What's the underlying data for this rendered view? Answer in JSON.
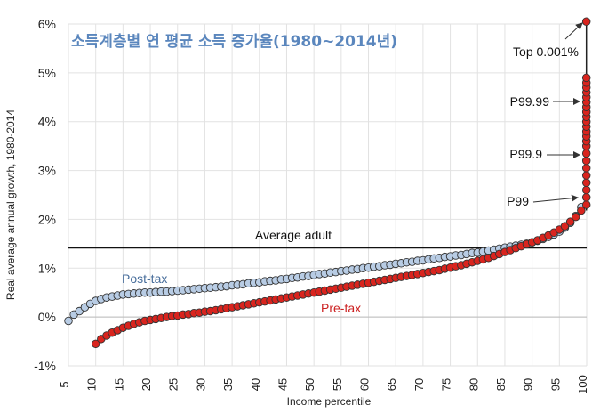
{
  "chart_data": {
    "type": "scatter",
    "title": "소득계층별 연 평균 소득 증가율(1980~2014년)",
    "xlabel": "Income percentile",
    "ylabel": "Real average annual growth, 1980-2014",
    "xlim": [
      5,
      100
    ],
    "ylim": [
      -1,
      6
    ],
    "x_ticks": [
      5,
      10,
      15,
      20,
      25,
      30,
      35,
      40,
      45,
      50,
      55,
      60,
      65,
      70,
      75,
      80,
      85,
      90,
      95,
      100
    ],
    "y_ticks": [
      -1,
      0,
      1,
      2,
      3,
      4,
      5,
      6
    ],
    "y_tick_labels": [
      "-1%",
      "0%",
      "1%",
      "2%",
      "3%",
      "4%",
      "5%",
      "6%"
    ],
    "grid": true,
    "reference_line": {
      "label": "Average adult",
      "y": 1.42
    },
    "series": [
      {
        "name": "Post-tax",
        "color": "#b8cce4",
        "points": [
          [
            5,
            -0.08
          ],
          [
            6,
            0.05
          ],
          [
            7,
            0.12
          ],
          [
            8,
            0.2
          ],
          [
            9,
            0.27
          ],
          [
            10,
            0.33
          ],
          [
            11,
            0.37
          ],
          [
            12,
            0.4
          ],
          [
            13,
            0.42
          ],
          [
            14,
            0.44
          ],
          [
            15,
            0.46
          ],
          [
            16,
            0.47
          ],
          [
            17,
            0.48
          ],
          [
            18,
            0.49
          ],
          [
            19,
            0.5
          ],
          [
            20,
            0.5
          ],
          [
            21,
            0.51
          ],
          [
            22,
            0.52
          ],
          [
            23,
            0.52
          ],
          [
            24,
            0.53
          ],
          [
            25,
            0.54
          ],
          [
            26,
            0.55
          ],
          [
            27,
            0.56
          ],
          [
            28,
            0.57
          ],
          [
            29,
            0.58
          ],
          [
            30,
            0.59
          ],
          [
            31,
            0.6
          ],
          [
            32,
            0.61
          ],
          [
            33,
            0.62
          ],
          [
            34,
            0.63
          ],
          [
            35,
            0.65
          ],
          [
            36,
            0.66
          ],
          [
            37,
            0.67
          ],
          [
            38,
            0.69
          ],
          [
            39,
            0.7
          ],
          [
            40,
            0.71
          ],
          [
            41,
            0.73
          ],
          [
            42,
            0.74
          ],
          [
            43,
            0.75
          ],
          [
            44,
            0.77
          ],
          [
            45,
            0.78
          ],
          [
            46,
            0.8
          ],
          [
            47,
            0.81
          ],
          [
            48,
            0.83
          ],
          [
            49,
            0.84
          ],
          [
            50,
            0.86
          ],
          [
            51,
            0.88
          ],
          [
            52,
            0.89
          ],
          [
            53,
            0.91
          ],
          [
            54,
            0.92
          ],
          [
            55,
            0.94
          ],
          [
            56,
            0.95
          ],
          [
            57,
            0.97
          ],
          [
            58,
            0.98
          ],
          [
            59,
            1.0
          ],
          [
            60,
            1.01
          ],
          [
            61,
            1.03
          ],
          [
            62,
            1.04
          ],
          [
            63,
            1.06
          ],
          [
            64,
            1.07
          ],
          [
            65,
            1.09
          ],
          [
            66,
            1.1
          ],
          [
            67,
            1.12
          ],
          [
            68,
            1.13
          ],
          [
            69,
            1.15
          ],
          [
            70,
            1.16
          ],
          [
            71,
            1.18
          ],
          [
            72,
            1.2
          ],
          [
            73,
            1.21
          ],
          [
            74,
            1.23
          ],
          [
            75,
            1.24
          ],
          [
            76,
            1.26
          ],
          [
            77,
            1.27
          ],
          [
            78,
            1.29
          ],
          [
            79,
            1.31
          ],
          [
            80,
            1.32
          ],
          [
            81,
            1.34
          ],
          [
            82,
            1.36
          ],
          [
            83,
            1.38
          ],
          [
            84,
            1.4
          ],
          [
            85,
            1.42
          ],
          [
            86,
            1.44
          ],
          [
            87,
            1.46
          ],
          [
            88,
            1.48
          ],
          [
            89,
            1.5
          ],
          [
            90,
            1.53
          ],
          [
            91,
            1.56
          ],
          [
            92,
            1.6
          ],
          [
            93,
            1.64
          ],
          [
            94,
            1.69
          ],
          [
            95,
            1.75
          ],
          [
            96,
            1.83
          ],
          [
            97,
            1.93
          ],
          [
            98,
            2.07
          ],
          [
            99,
            2.25
          ]
        ]
      },
      {
        "name": "Pre-tax",
        "color": "#d9241e",
        "points": [
          [
            10,
            -0.55
          ],
          [
            11,
            -0.45
          ],
          [
            12,
            -0.38
          ],
          [
            13,
            -0.32
          ],
          [
            14,
            -0.27
          ],
          [
            15,
            -0.22
          ],
          [
            16,
            -0.18
          ],
          [
            17,
            -0.14
          ],
          [
            18,
            -0.11
          ],
          [
            19,
            -0.08
          ],
          [
            20,
            -0.06
          ],
          [
            21,
            -0.04
          ],
          [
            22,
            -0.02
          ],
          [
            23,
            0.0
          ],
          [
            24,
            0.02
          ],
          [
            25,
            0.03
          ],
          [
            26,
            0.05
          ],
          [
            27,
            0.06
          ],
          [
            28,
            0.08
          ],
          [
            29,
            0.09
          ],
          [
            30,
            0.11
          ],
          [
            31,
            0.12
          ],
          [
            32,
            0.14
          ],
          [
            33,
            0.16
          ],
          [
            34,
            0.18
          ],
          [
            35,
            0.2
          ],
          [
            36,
            0.22
          ],
          [
            37,
            0.24
          ],
          [
            38,
            0.26
          ],
          [
            39,
            0.28
          ],
          [
            40,
            0.3
          ],
          [
            41,
            0.32
          ],
          [
            42,
            0.34
          ],
          [
            43,
            0.36
          ],
          [
            44,
            0.38
          ],
          [
            45,
            0.4
          ],
          [
            46,
            0.42
          ],
          [
            47,
            0.44
          ],
          [
            48,
            0.46
          ],
          [
            49,
            0.48
          ],
          [
            50,
            0.5
          ],
          [
            51,
            0.52
          ],
          [
            52,
            0.54
          ],
          [
            53,
            0.56
          ],
          [
            54,
            0.58
          ],
          [
            55,
            0.6
          ],
          [
            56,
            0.62
          ],
          [
            57,
            0.64
          ],
          [
            58,
            0.66
          ],
          [
            59,
            0.68
          ],
          [
            60,
            0.7
          ],
          [
            61,
            0.72
          ],
          [
            62,
            0.74
          ],
          [
            63,
            0.76
          ],
          [
            64,
            0.78
          ],
          [
            65,
            0.8
          ],
          [
            66,
            0.82
          ],
          [
            67,
            0.84
          ],
          [
            68,
            0.86
          ],
          [
            69,
            0.88
          ],
          [
            70,
            0.9
          ],
          [
            71,
            0.92
          ],
          [
            72,
            0.94
          ],
          [
            73,
            0.96
          ],
          [
            74,
            0.99
          ],
          [
            75,
            1.01
          ],
          [
            76,
            1.04
          ],
          [
            77,
            1.06
          ],
          [
            78,
            1.09
          ],
          [
            79,
            1.12
          ],
          [
            80,
            1.15
          ],
          [
            81,
            1.18
          ],
          [
            82,
            1.21
          ],
          [
            83,
            1.25
          ],
          [
            84,
            1.29
          ],
          [
            85,
            1.33
          ],
          [
            86,
            1.37
          ],
          [
            87,
            1.41
          ],
          [
            88,
            1.45
          ],
          [
            89,
            1.49
          ],
          [
            90,
            1.53
          ],
          [
            91,
            1.57
          ],
          [
            92,
            1.62
          ],
          [
            93,
            1.67
          ],
          [
            94,
            1.73
          ],
          [
            95,
            1.79
          ],
          [
            96,
            1.86
          ],
          [
            97,
            1.95
          ],
          [
            98,
            2.05
          ],
          [
            99,
            2.18
          ],
          [
            99.1,
            2.3
          ],
          [
            99.2,
            2.45
          ],
          [
            99.3,
            2.6
          ],
          [
            99.4,
            2.75
          ],
          [
            99.5,
            2.9
          ],
          [
            99.6,
            3.05
          ],
          [
            99.7,
            3.2
          ],
          [
            99.8,
            3.35
          ],
          [
            99.9,
            3.5
          ],
          [
            99.91,
            3.6
          ],
          [
            99.92,
            3.7
          ],
          [
            99.93,
            3.8
          ],
          [
            99.94,
            3.9
          ],
          [
            99.95,
            4.0
          ],
          [
            99.96,
            4.1
          ],
          [
            99.97,
            4.2
          ],
          [
            99.98,
            4.3
          ],
          [
            99.99,
            4.4
          ],
          [
            99.991,
            4.5
          ],
          [
            99.992,
            4.6
          ],
          [
            99.993,
            4.7
          ],
          [
            99.994,
            4.8
          ],
          [
            99.995,
            4.9
          ],
          [
            99.999,
            6.05
          ]
        ]
      }
    ],
    "annotations": [
      {
        "label": "Top 0.001%",
        "y": 5.0
      },
      {
        "label": "P99.99",
        "y": 4.4
      },
      {
        "label": "P99.9",
        "y": 3.3
      },
      {
        "label": "P99",
        "y": 2.35
      }
    ]
  }
}
